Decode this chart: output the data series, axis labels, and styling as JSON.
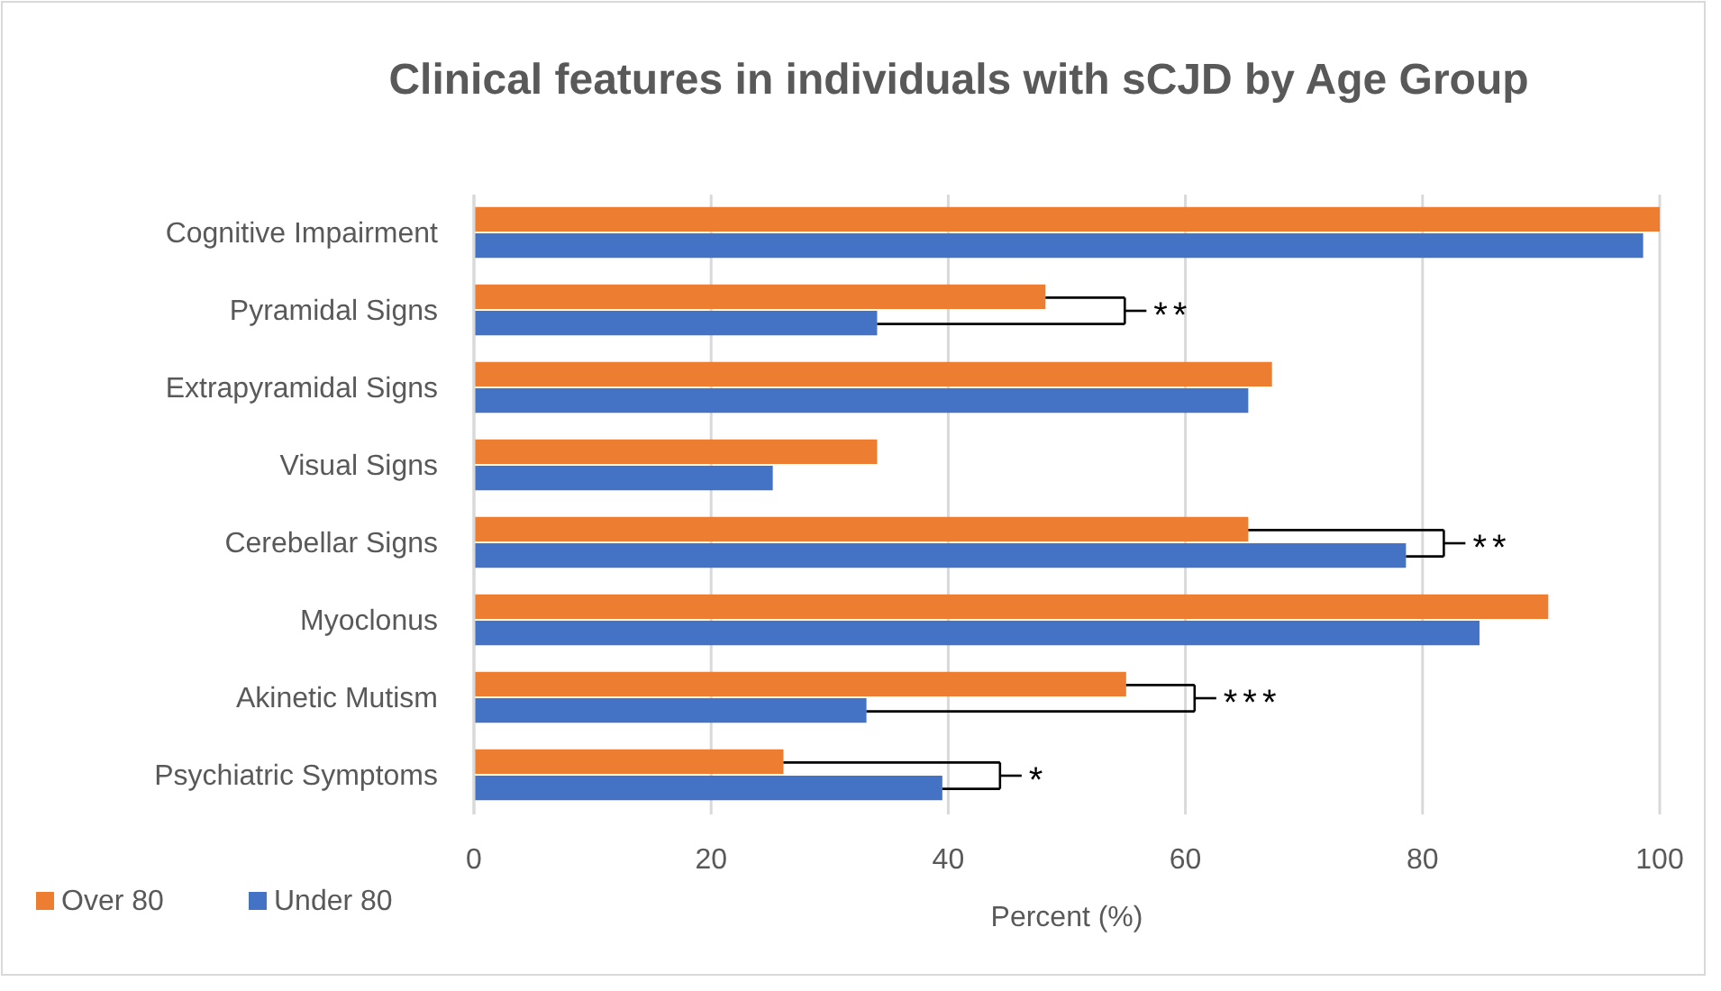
{
  "chart_data": {
    "type": "bar",
    "orientation": "horizontal",
    "title": "Clinical features in individuals with sCJD by Age Group",
    "xlabel": "Percent (%)",
    "categories": [
      "Cognitive Impairment",
      "Pyramidal Signs",
      "Extrapyramidal Signs",
      "Visual Signs",
      "Cerebellar Signs",
      "Myoclonus",
      "Akinetic Mutism",
      "Psychiatric Symptoms"
    ],
    "series": [
      {
        "name": "Over 80",
        "color": "#ed7d31",
        "values": [
          100,
          48.2,
          67.3,
          34.0,
          65.3,
          90.6,
          55.0,
          26.1
        ]
      },
      {
        "name": "Under 80",
        "color": "#4472c4",
        "values": [
          98.6,
          34.0,
          65.3,
          25.2,
          78.6,
          84.8,
          33.1,
          39.5
        ]
      }
    ],
    "xlim": [
      0,
      100
    ],
    "xticks": [
      0,
      20,
      40,
      60,
      80,
      100
    ],
    "grid": "x",
    "legend": "bottom left",
    "annotations": [
      {
        "text": "**",
        "x": 48.2,
        "y": "Pyramidal Signs"
      },
      {
        "text": "**",
        "x": 78.6,
        "y": "Cerebellar Signs"
      },
      {
        "text": "***",
        "x": 55.0,
        "y": "Akinetic Mutism"
      },
      {
        "text": "*",
        "x": 39.5,
        "y": "Psychiatric Symptoms"
      }
    ]
  }
}
